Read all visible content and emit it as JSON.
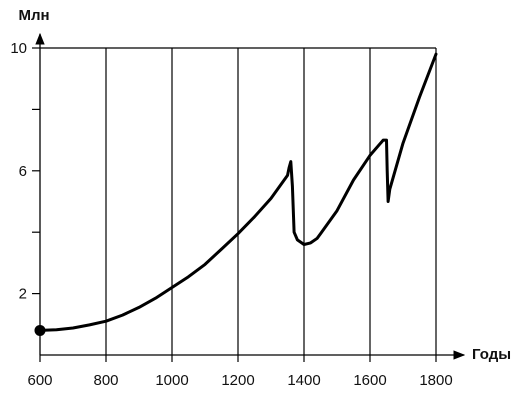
{
  "chart_data": {
    "type": "line",
    "title": "",
    "xlabel": "Годы",
    "ylabel": "Млн",
    "xlim": [
      600,
      1800
    ],
    "ylim": [
      0,
      10
    ],
    "grid": {
      "vertical": true,
      "horizontal": false
    },
    "x_ticks": [
      600,
      800,
      1000,
      1200,
      1400,
      1600,
      1800
    ],
    "x_tick_labels": [
      "600",
      "800",
      "1000",
      "1200",
      "1400",
      "1600",
      "1800"
    ],
    "y_ticks": [
      2,
      6,
      10
    ],
    "y_tick_labels": [
      "2",
      "6",
      "10"
    ],
    "y_minor_ticks": [
      4,
      8
    ],
    "series": [
      {
        "x": [
          600,
          650,
          700,
          750,
          800,
          850,
          900,
          950,
          1000,
          1050,
          1100,
          1150,
          1200,
          1250,
          1300,
          1350,
          1355,
          1360,
          1365,
          1370,
          1380,
          1400,
          1420,
          1440,
          1450,
          1500,
          1550,
          1600,
          1640,
          1650,
          1652,
          1655,
          1660,
          1700,
          1750,
          1800
        ],
        "y": [
          0.8,
          0.82,
          0.88,
          0.98,
          1.1,
          1.3,
          1.55,
          1.85,
          2.2,
          2.55,
          2.95,
          3.45,
          3.95,
          4.5,
          5.1,
          5.85,
          6.1,
          6.3,
          5.5,
          4.0,
          3.75,
          3.6,
          3.65,
          3.8,
          3.95,
          4.7,
          5.7,
          6.5,
          7.0,
          7.0,
          6.0,
          5.0,
          5.4,
          6.9,
          8.4,
          9.8
        ],
        "marker_start": true
      }
    ]
  }
}
